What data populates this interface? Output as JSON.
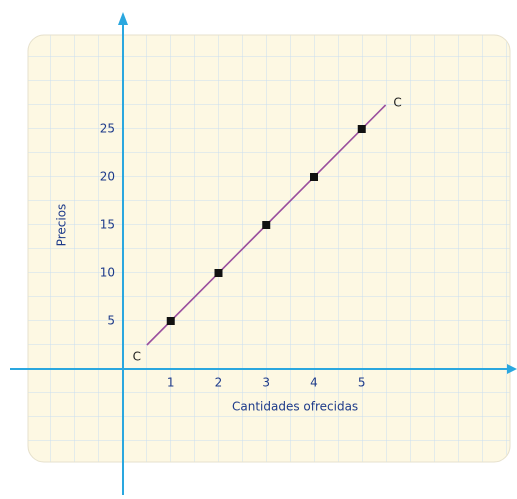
{
  "chart_data": {
    "type": "line",
    "x_label": "Cantidades ofrecidas",
    "y_label": "Precios",
    "series": [
      {
        "name": "C",
        "color": "#9a4f9e",
        "x": [
          0.5,
          5.5
        ],
        "values": [
          2.5,
          27.5
        ]
      },
      {
        "color": "#111111",
        "x": [
          1,
          2,
          3,
          4,
          5
        ],
        "values": [
          5,
          10,
          15,
          20,
          25
        ],
        "markers": true
      }
    ],
    "annotations": [
      "C",
      "C"
    ],
    "xlim": [
      -2,
      8
    ],
    "ylim": [
      -10,
      35
    ],
    "xticks": [
      1,
      2,
      3,
      4,
      5
    ],
    "yticks": [
      5,
      10,
      15,
      20,
      25
    ],
    "grid": true
  }
}
